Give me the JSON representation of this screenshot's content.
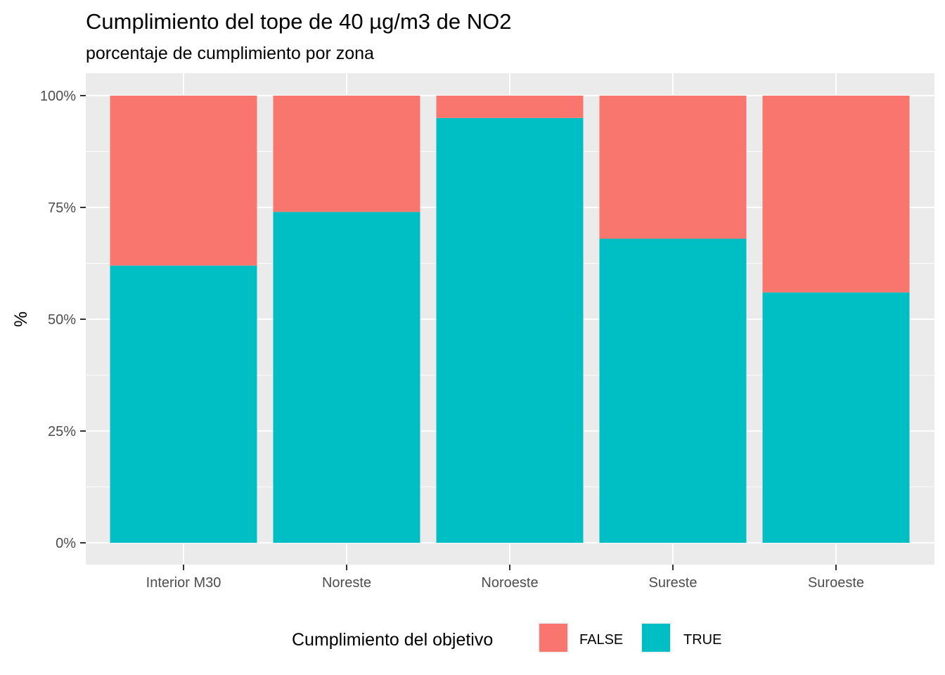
{
  "chart_data": {
    "type": "bar",
    "stacked": true,
    "position": "fill",
    "title": "Cumplimiento del tope de 40 µg/m3 de NO2",
    "subtitle": "porcentaje de cumplimiento por zona",
    "xlabel": "",
    "ylabel": "%",
    "ylim": [
      0,
      1
    ],
    "yticks": [
      0,
      0.25,
      0.5,
      0.75,
      1
    ],
    "ytick_labels": [
      "0%",
      "25%",
      "50%",
      "75%",
      "100%"
    ],
    "categories": [
      "Interior M30",
      "Noreste",
      "Noroeste",
      "Sureste",
      "Suroeste"
    ],
    "series": [
      {
        "name": "FALSE",
        "color": "#F8766D",
        "values": [
          0.38,
          0.26,
          0.05,
          0.32,
          0.44
        ]
      },
      {
        "name": "TRUE",
        "color": "#00BFC4",
        "values": [
          0.62,
          0.74,
          0.95,
          0.68,
          0.56
        ]
      }
    ],
    "grid": true,
    "legend": {
      "title": "Cumplimiento del objetivo",
      "position": "bottom",
      "entries": [
        "FALSE",
        "TRUE"
      ]
    }
  }
}
